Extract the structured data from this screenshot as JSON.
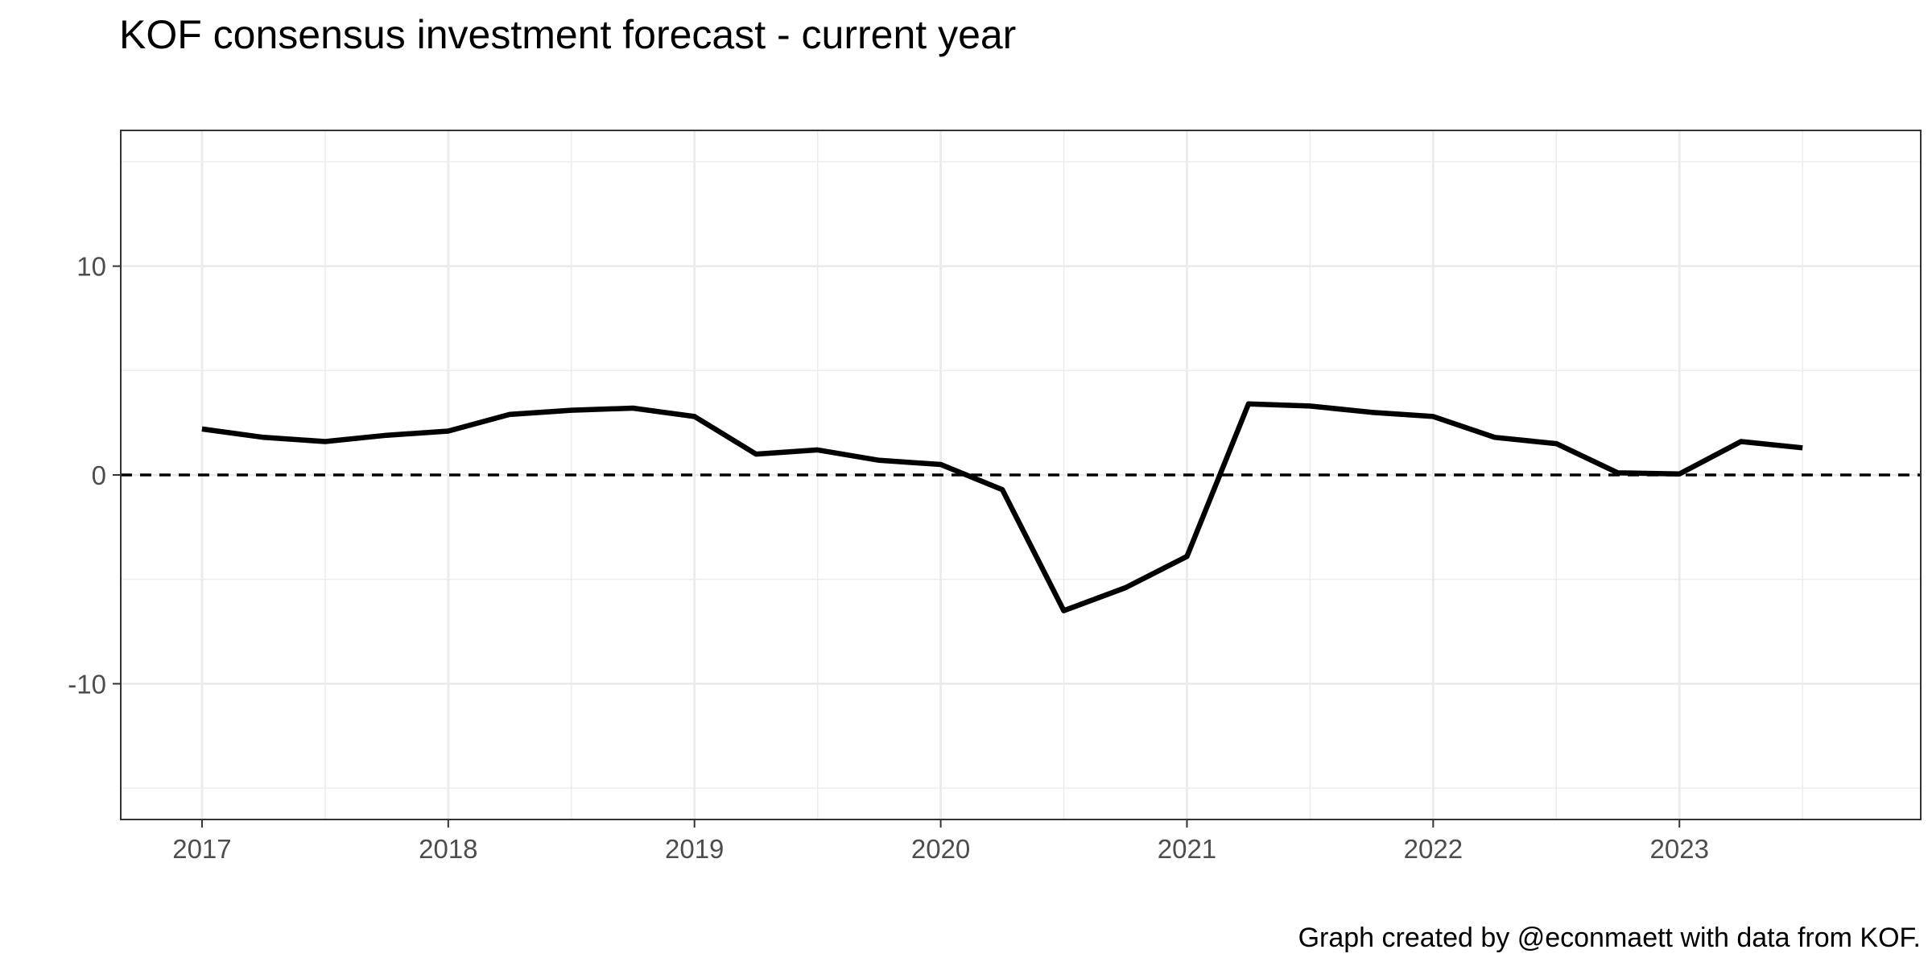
{
  "chart_data": {
    "type": "line",
    "title": "KOF consensus investment forecast - current year",
    "caption": "Graph created by @econmaett with data from KOF.",
    "xlabel": "",
    "ylabel": "",
    "x_ticks": [
      2017,
      2018,
      2019,
      2020,
      2021,
      2022,
      2023
    ],
    "y_ticks": [
      -10,
      0,
      10
    ],
    "x_tick_labels": [
      "2017",
      "2018",
      "2019",
      "2020",
      "2021",
      "2022",
      "2023"
    ],
    "y_tick_labels": [
      "-10",
      "0",
      "10"
    ],
    "xlim": [
      2016.67,
      2023.98
    ],
    "ylim": [
      -16.5,
      16.5
    ],
    "grid": true,
    "legend": "none",
    "reference_line": {
      "y": 0,
      "style": "dashed",
      "color": "#000000"
    },
    "series": [
      {
        "color": "#000000",
        "x": [
          2017.0,
          2017.25,
          2017.5,
          2017.75,
          2018.0,
          2018.25,
          2018.5,
          2018.75,
          2019.0,
          2019.25,
          2019.5,
          2019.75,
          2020.0,
          2020.25,
          2020.5,
          2020.75,
          2021.0,
          2021.25,
          2021.5,
          2021.75,
          2022.0,
          2022.25,
          2022.5,
          2022.75,
          2023.0,
          2023.25,
          2023.5
        ],
        "y": [
          2.2,
          1.8,
          1.6,
          1.9,
          2.1,
          2.9,
          3.1,
          3.2,
          2.8,
          1.0,
          1.2,
          0.7,
          0.5,
          -0.7,
          -6.5,
          -5.4,
          -3.9,
          3.4,
          3.3,
          3.0,
          2.8,
          1.8,
          1.5,
          0.1,
          0.05,
          1.6,
          1.3
        ]
      }
    ]
  }
}
